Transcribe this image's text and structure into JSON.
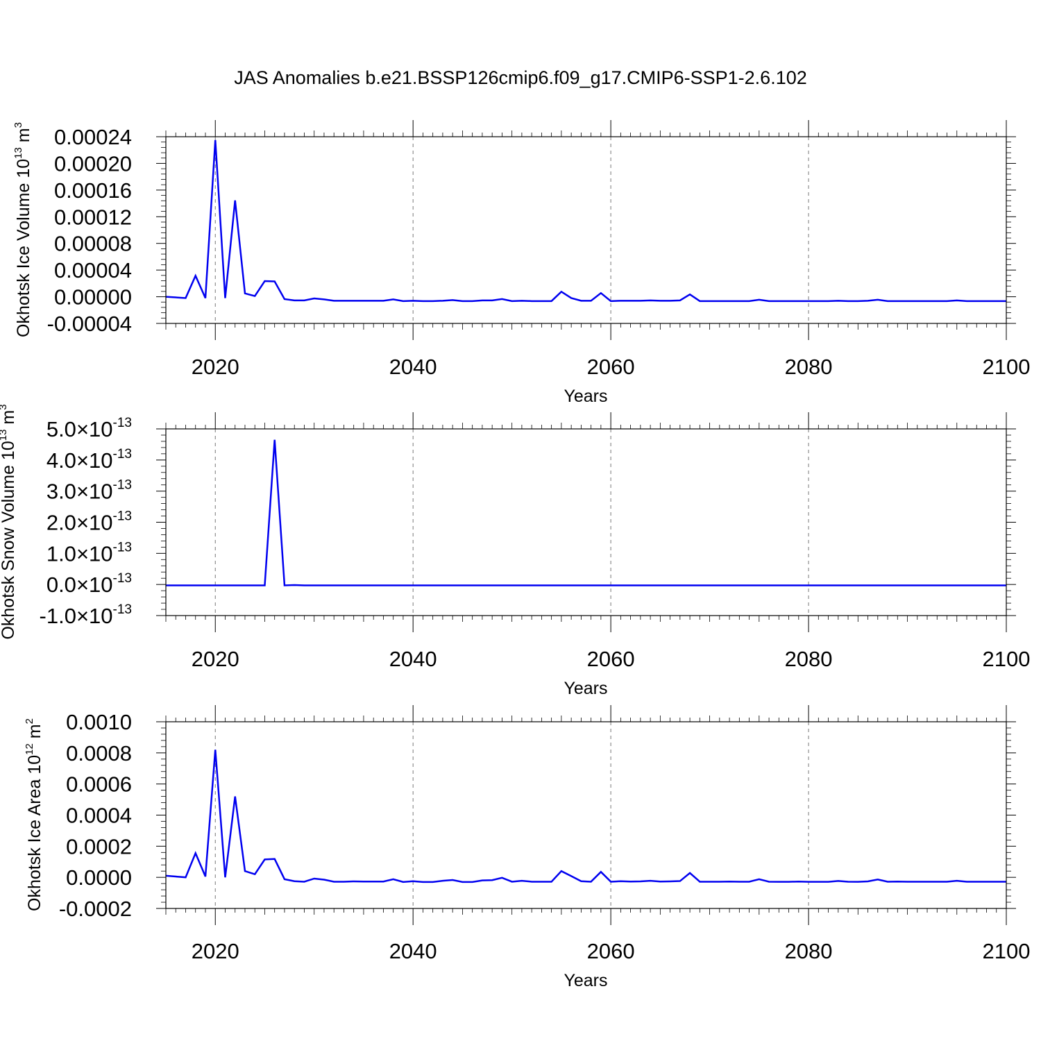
{
  "title": "JAS Anomalies b.e21.BSSP126cmip6.f09_g17.CMIP6-SSP1-2.6.102",
  "series_color": "#0000f0",
  "chart_data": [
    {
      "type": "line",
      "ylabel": "Okhotsk Ice Volume 10",
      "ylabel_exp": "13",
      "ylabel_unit": " m",
      "ylabel_unit_exp": "3",
      "xlabel": "Years",
      "xlim": [
        2015,
        2100
      ],
      "ylim": [
        -4e-05,
        0.00024
      ],
      "xticks": [
        2020,
        2040,
        2060,
        2080,
        2100
      ],
      "xtick_labels": [
        "2020",
        "2040",
        "2060",
        "2080",
        "2100"
      ],
      "yticks": [
        -4e-05,
        0.0,
        4e-05,
        8e-05,
        0.00012,
        0.00016,
        0.0002,
        0.00024
      ],
      "ytick_labels": [
        "-0.00004",
        "0.00000",
        "0.00004",
        "0.00008",
        "0.00012",
        "0.00016",
        "0.00020",
        "0.00024"
      ],
      "grid": "dashed vertical at major x ticks",
      "x": [
        2015,
        2016,
        2017,
        2018,
        2019,
        2020,
        2021,
        2022,
        2023,
        2024,
        2025,
        2026,
        2027,
        2028,
        2029,
        2030,
        2031,
        2032,
        2033,
        2034,
        2035,
        2036,
        2037,
        2038,
        2039,
        2040,
        2041,
        2042,
        2043,
        2044,
        2045,
        2046,
        2047,
        2048,
        2049,
        2050,
        2051,
        2052,
        2053,
        2054,
        2055,
        2056,
        2057,
        2058,
        2059,
        2060,
        2061,
        2062,
        2063,
        2064,
        2065,
        2066,
        2067,
        2068,
        2069,
        2070,
        2071,
        2072,
        2073,
        2074,
        2075,
        2076,
        2077,
        2078,
        2079,
        2080,
        2081,
        2082,
        2083,
        2084,
        2085,
        2086,
        2087,
        2088,
        2089,
        2090,
        2091,
        2092,
        2093,
        2094,
        2095,
        2096,
        2097,
        2098,
        2099,
        2100
      ],
      "values": [
        0.0,
        -1e-06,
        -2e-06,
        3.15e-05,
        -2e-06,
        0.000235,
        -2e-06,
        0.0001445,
        5e-06,
        1e-06,
        2.35e-05,
        2.3e-05,
        -3.5e-06,
        -5.5e-06,
        -5.5e-06,
        -2.5e-06,
        -4e-06,
        -6e-06,
        -6e-06,
        -6e-06,
        -6e-06,
        -6e-06,
        -6e-06,
        -4e-06,
        -6.5e-06,
        -6e-06,
        -6.5e-06,
        -6.5e-06,
        -6e-06,
        -5e-06,
        -6.5e-06,
        -6.5e-06,
        -5.5e-06,
        -5.5e-06,
        -3.5e-06,
        -6.5e-06,
        -6e-06,
        -6.5e-06,
        -6.5e-06,
        -6.5e-06,
        7.5e-06,
        -2e-06,
        -6e-06,
        -6e-06,
        5.5e-06,
        -6.5e-06,
        -6e-06,
        -6e-06,
        -6e-06,
        -5.5e-06,
        -6e-06,
        -6e-06,
        -5.5e-06,
        3.5e-06,
        -6.5e-06,
        -6.5e-06,
        -6.5e-06,
        -6.5e-06,
        -6.5e-06,
        -6.5e-06,
        -4.5e-06,
        -6.5e-06,
        -6.5e-06,
        -6.5e-06,
        -6.5e-06,
        -6.5e-06,
        -6.5e-06,
        -6.5e-06,
        -6e-06,
        -6.5e-06,
        -6.5e-06,
        -6e-06,
        -4.5e-06,
        -6.5e-06,
        -6.5e-06,
        -6.5e-06,
        -6.5e-06,
        -6.5e-06,
        -6.5e-06,
        -6.5e-06,
        -5.5e-06,
        -6.5e-06,
        -6.5e-06,
        -6.5e-06,
        -6.5e-06,
        -6.5e-06
      ]
    },
    {
      "type": "line",
      "ylabel": "Okhotsk Snow Volume 10",
      "ylabel_exp": "13",
      "ylabel_unit": " m",
      "ylabel_unit_exp": "3",
      "xlabel": "Years",
      "xlim": [
        2015,
        2100
      ],
      "ylim": [
        -1e-13,
        5e-13
      ],
      "xticks": [
        2020,
        2040,
        2060,
        2080,
        2100
      ],
      "xtick_labels": [
        "2020",
        "2040",
        "2060",
        "2080",
        "2100"
      ],
      "yticks": [
        -1e-13,
        0.0,
        1e-13,
        2e-13,
        3e-13,
        4e-13,
        5e-13
      ],
      "ytick_mantissas": [
        "-1.0",
        "0.0",
        "1.0",
        "2.0",
        "3.0",
        "4.0",
        "5.0"
      ],
      "ytick_times": "×10",
      "ytick_exp": "-13",
      "grid": "dashed vertical at major x ticks",
      "x": [
        2015,
        2016,
        2017,
        2018,
        2019,
        2020,
        2021,
        2022,
        2023,
        2024,
        2025,
        2026,
        2027,
        2028,
        2029,
        2030,
        2100
      ],
      "values": [
        -3e-15,
        -3e-15,
        -3e-15,
        -3e-15,
        -3e-15,
        -3e-15,
        -3e-15,
        -3e-15,
        -3e-15,
        -3e-15,
        -3e-15,
        4.65e-13,
        -3e-15,
        -2e-15,
        -3e-15,
        -3e-15,
        -3e-15
      ]
    },
    {
      "type": "line",
      "ylabel": "Okhotsk Ice Area 10",
      "ylabel_exp": "12",
      "ylabel_unit": " m",
      "ylabel_unit_exp": "2",
      "xlabel": "Years",
      "xlim": [
        2015,
        2100
      ],
      "ylim": [
        -0.0002,
        0.001
      ],
      "xticks": [
        2020,
        2040,
        2060,
        2080,
        2100
      ],
      "xtick_labels": [
        "2020",
        "2040",
        "2060",
        "2080",
        "2100"
      ],
      "yticks": [
        -0.0002,
        0.0,
        0.0002,
        0.0004,
        0.0006,
        0.0008,
        0.001
      ],
      "ytick_labels": [
        "-0.0002",
        "0.0000",
        "0.0002",
        "0.0004",
        "0.0006",
        "0.0008",
        "0.0010"
      ],
      "grid": "dashed vertical at major x ticks",
      "x": [
        2015,
        2016,
        2017,
        2018,
        2019,
        2020,
        2021,
        2022,
        2023,
        2024,
        2025,
        2026,
        2027,
        2028,
        2029,
        2030,
        2031,
        2032,
        2033,
        2034,
        2035,
        2036,
        2037,
        2038,
        2039,
        2040,
        2041,
        2042,
        2043,
        2044,
        2045,
        2046,
        2047,
        2048,
        2049,
        2050,
        2051,
        2052,
        2053,
        2054,
        2055,
        2056,
        2057,
        2058,
        2059,
        2060,
        2061,
        2062,
        2063,
        2064,
        2065,
        2066,
        2067,
        2068,
        2069,
        2070,
        2071,
        2072,
        2073,
        2074,
        2075,
        2076,
        2077,
        2078,
        2079,
        2080,
        2081,
        2082,
        2083,
        2084,
        2085,
        2086,
        2087,
        2088,
        2089,
        2090,
        2091,
        2092,
        2093,
        2094,
        2095,
        2096,
        2097,
        2098,
        2099,
        2100
      ],
      "values": [
        1e-05,
        5e-06,
        0.0,
        0.000155,
        5e-06,
        0.00082,
        0.0,
        0.00052,
        4e-05,
        2e-05,
        0.000115,
        0.000118,
        -1.2e-05,
        -2.5e-05,
        -2.8e-05,
        -8e-06,
        -1.5e-05,
        -2.8e-05,
        -2.8e-05,
        -2.6e-05,
        -2.7e-05,
        -2.7e-05,
        -2.7e-05,
        -1.2e-05,
        -3e-05,
        -2.5e-05,
        -3e-05,
        -3e-05,
        -2.2e-05,
        -1.7e-05,
        -3e-05,
        -3e-05,
        -2e-05,
        -1.8e-05,
        -3e-06,
        -2.8e-05,
        -2.2e-05,
        -2.8e-05,
        -2.8e-05,
        -2.8e-05,
        4e-05,
        8e-06,
        -2.5e-05,
        -2.8e-05,
        3.5e-05,
        -2.8e-05,
        -2.5e-05,
        -2.7e-05,
        -2.6e-05,
        -2.2e-05,
        -2.7e-05,
        -2.6e-05,
        -2.4e-05,
        2.8e-05,
        -2.8e-05,
        -2.8e-05,
        -2.8e-05,
        -2.7e-05,
        -2.8e-05,
        -2.8e-05,
        -1.2e-05,
        -2.8e-05,
        -2.9e-05,
        -2.9e-05,
        -2.7e-05,
        -2.9e-05,
        -2.9e-05,
        -2.9e-05,
        -2.3e-05,
        -2.8e-05,
        -2.9e-05,
        -2.6e-05,
        -1.4e-05,
        -2.8e-05,
        -2.7e-05,
        -2.8e-05,
        -2.8e-05,
        -2.8e-05,
        -2.8e-05,
        -2.8e-05,
        -2.2e-05,
        -2.8e-05,
        -2.8e-05,
        -2.8e-05,
        -2.8e-05,
        -2.8e-05
      ]
    }
  ]
}
